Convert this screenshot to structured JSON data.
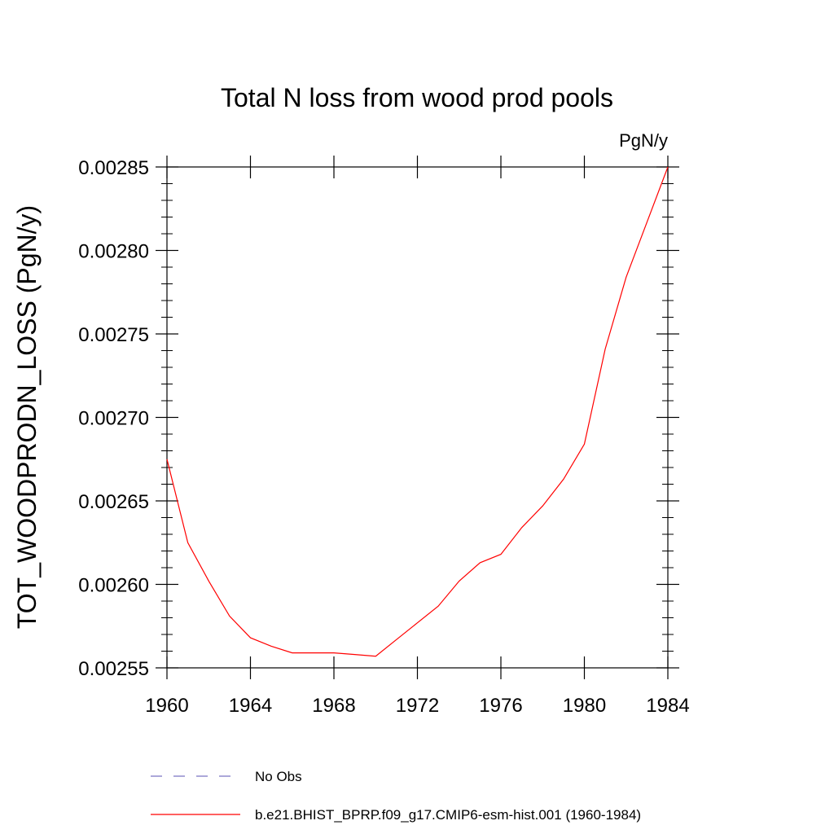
{
  "chart_data": {
    "type": "line",
    "title": "Total N loss from wood prod pools",
    "units_label": "PgN/y",
    "ylabel": "TOT_WOODPRODN_LOSS  (PgN/y)",
    "xlabel": "",
    "xlim": [
      1960,
      1984
    ],
    "ylim": [
      0.00255,
      0.00285
    ],
    "xticks": [
      1960,
      1964,
      1968,
      1972,
      1976,
      1980,
      1984
    ],
    "xtick_labels": [
      "1960",
      "1964",
      "1968",
      "1972",
      "1976",
      "1980",
      "1984"
    ],
    "yticks": [
      0.00255,
      0.0026,
      0.00265,
      0.0027,
      0.00275,
      0.0028,
      0.00285
    ],
    "ytick_labels": [
      "0.00255",
      "0.00260",
      "0.00265",
      "0.00270",
      "0.00275",
      "0.00280",
      "0.00285"
    ],
    "grid": false,
    "legend_position": "bottom",
    "series": [
      {
        "name": "No Obs",
        "color": "#7b74c2",
        "dash": "dashed",
        "x": [],
        "y": []
      },
      {
        "name": "b.e21.BHIST_BPRP.f09_g17.CMIP6-esm-hist.001 (1960-1984)",
        "color": "#ff0000",
        "dash": "solid",
        "x": [
          1960,
          1961,
          1962,
          1963,
          1964,
          1965,
          1966,
          1967,
          1968,
          1969,
          1970,
          1971,
          1972,
          1973,
          1974,
          1975,
          1976,
          1977,
          1978,
          1979,
          1980,
          1981,
          1982,
          1983,
          1984
        ],
        "y": [
          0.002675,
          0.002625,
          0.002602,
          0.002581,
          0.002568,
          0.002563,
          0.002559,
          0.002559,
          0.002559,
          0.002558,
          0.002557,
          0.002567,
          0.002577,
          0.002587,
          0.002602,
          0.002613,
          0.002618,
          0.002634,
          0.002647,
          0.002663,
          0.002684,
          0.002741,
          0.002784,
          0.002817,
          0.00285
        ]
      }
    ]
  }
}
